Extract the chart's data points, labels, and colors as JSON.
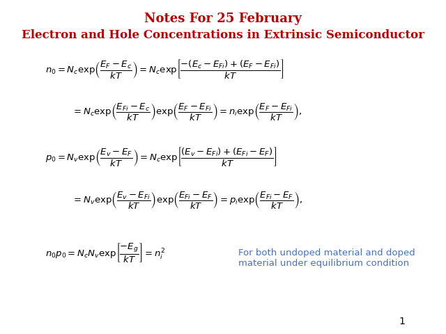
{
  "title": "Notes For 25 February",
  "title_color": "#C00000",
  "subtitle": "Electron and Hole Concentrations in Extrinsic Semiconductor",
  "subtitle_color": "#C00000",
  "background_color": "#FFFFFF",
  "text_color": "#000000",
  "annotation_color": "#4472C4",
  "annotation_text": "For both undoped material and doped\nmaterial under equilibrium condition",
  "page_number": "1",
  "eq1_line1": "$n_0 = N_c \\exp\\!\\left(\\dfrac{E_F - E_c}{kT}\\right) = N_c \\exp\\!\\left[\\dfrac{-(E_c - E_{Fi}) + (E_F - E_{Fi})}{kT}\\right]$",
  "eq1_line2": "$= N_c \\exp\\!\\left(\\dfrac{E_{Fi} - E_c}{kT}\\right)\\exp\\!\\left(\\dfrac{E_F - E_{Fi}}{kT}\\right) = n_i \\exp\\!\\left(\\dfrac{E_F - E_{Fi}}{kT}\\right),$",
  "eq2_line1": "$p_0 = N_v \\exp\\!\\left(\\dfrac{E_v - E_F}{kT}\\right) = N_c \\exp\\!\\left[\\dfrac{(E_v - E_{Fi}) + (E_{Fi} - E_F)}{kT}\\right]$",
  "eq2_line2": "$= N_v \\exp\\!\\left(\\dfrac{E_v - E_{Fi}}{kT}\\right)\\exp\\!\\left(\\dfrac{E_{Fi} - E_F}{kT}\\right) = p_i \\exp\\!\\left(\\dfrac{E_{Fi} - E_F}{kT}\\right),$",
  "eq3": "$n_0 p_0 = N_c N_v \\exp\\!\\left[\\dfrac{-E_g}{kT}\\right] = n_i^2$"
}
